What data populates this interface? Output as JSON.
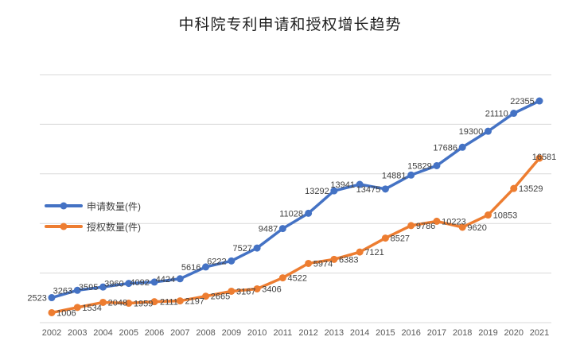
{
  "title": "中科院专利申请和授权增长趋势",
  "colors": {
    "applications": "#4472C4",
    "grants": "#ED7D31",
    "gridline": "#D9D9D9",
    "data_label": "#3f3f3f",
    "axis_label": "#595959",
    "title_text": "#1f1f1f"
  },
  "chart_data": {
    "type": "line",
    "title": "中科院专利申请和授权增长趋势",
    "x": [
      2002,
      2003,
      2004,
      2005,
      2006,
      2007,
      2008,
      2009,
      2010,
      2011,
      2012,
      2013,
      2014,
      2015,
      2016,
      2017,
      2018,
      2019,
      2020,
      2021
    ],
    "series": [
      {
        "name": "申请数量(件)",
        "color": "#4472C4",
        "label_side": "left",
        "values": [
          2523,
          3263,
          3595,
          3960,
          4092,
          4424,
          5616,
          6222,
          7527,
          9487,
          11028,
          13292,
          13941,
          13475,
          14881,
          15829,
          17686,
          19300,
          21110,
          22355
        ]
      },
      {
        "name": "授权数量(件)",
        "color": "#ED7D31",
        "label_side": "right",
        "values": [
          1006,
          1534,
          2048,
          1959,
          2111,
          2197,
          2665,
          3167,
          3406,
          4522,
          5974,
          6383,
          7121,
          8527,
          9786,
          10223,
          9620,
          10853,
          13529,
          16581
        ]
      }
    ],
    "xlabel": "",
    "ylabel": "",
    "ylim": [
      0,
      25000
    ],
    "gridline_step": 5000,
    "grid": true,
    "y_axis_labels_shown": false,
    "data_labels_shown": true,
    "legend_position": "middle-left"
  }
}
